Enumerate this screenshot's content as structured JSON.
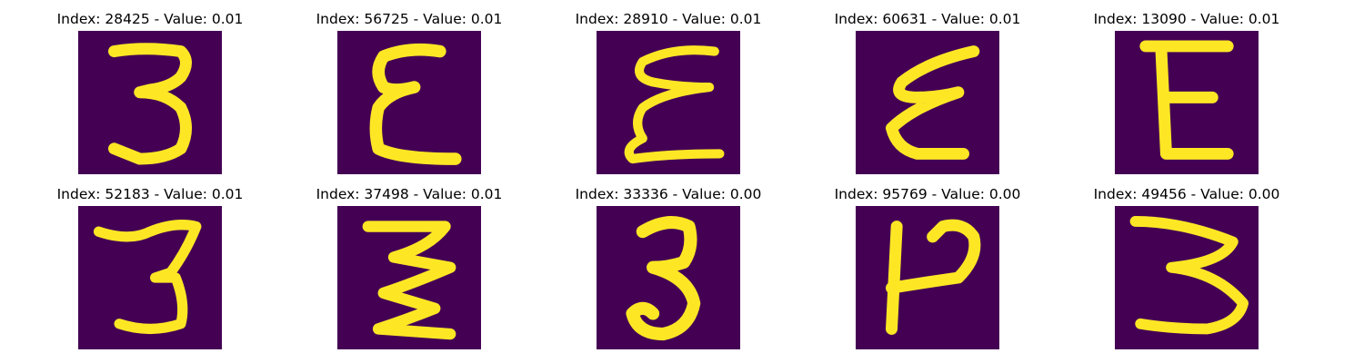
{
  "panels": [
    {
      "title": "Index: 28425 - Value: 0.01",
      "glyph": "3",
      "bg": "#440154",
      "stroke": "#FDE725"
    },
    {
      "title": "Index: 56725 - Value: 0.01",
      "glyph": "E",
      "bg": "#440154",
      "stroke": "#FDE725"
    },
    {
      "title": "Index: 28910 - Value: 0.01",
      "glyph": "E",
      "bg": "#440154",
      "stroke": "#FDE725"
    },
    {
      "title": "Index: 60631 - Value: 0.01",
      "glyph": "E",
      "bg": "#440154",
      "stroke": "#FDE725"
    },
    {
      "title": "Index: 13090 - Value: 0.01",
      "glyph": "E",
      "bg": "#440154",
      "stroke": "#FDE725"
    },
    {
      "title": "Index: 52183 - Value: 0.01",
      "glyph": "3",
      "bg": "#440154",
      "stroke": "#FDE725"
    },
    {
      "title": "Index: 37498 - Value: 0.01",
      "glyph": "Z",
      "bg": "#440154",
      "stroke": "#FDE725"
    },
    {
      "title": "Index: 33336 - Value: 0.00",
      "glyph": "3",
      "bg": "#440154",
      "stroke": "#FDE725"
    },
    {
      "title": "Index: 95769 - Value: 0.00",
      "glyph": "P",
      "bg": "#440154",
      "stroke": "#FDE725"
    },
    {
      "title": "Index: 49456 - Value: 0.00",
      "glyph": "3",
      "bg": "#440154",
      "stroke": "#FDE725"
    }
  ]
}
